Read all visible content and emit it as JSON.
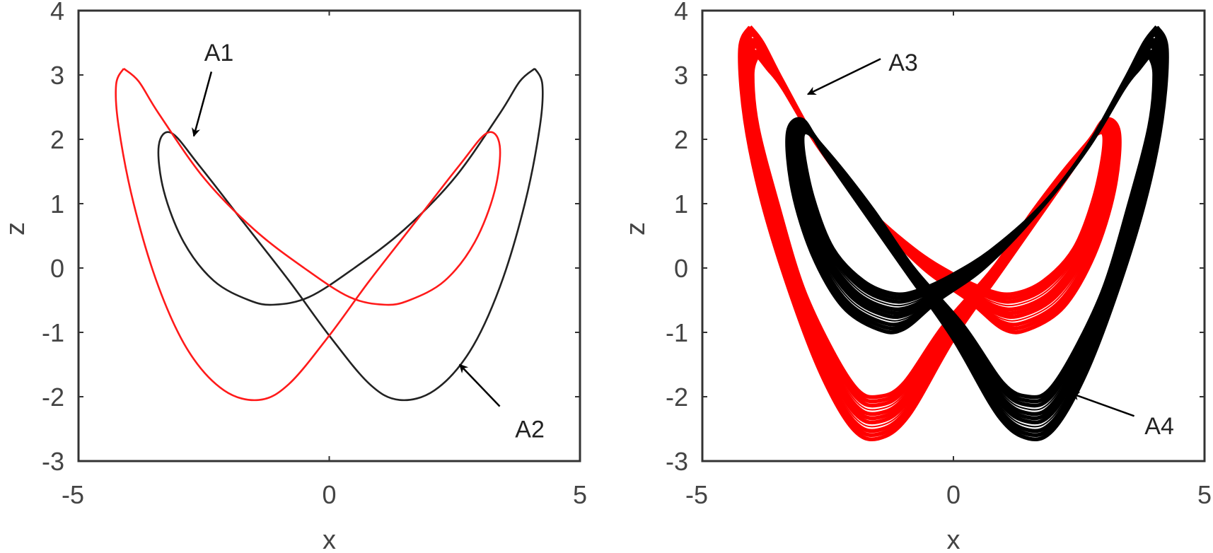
{
  "chart_data": [
    {
      "type": "line",
      "panel": "left",
      "xlabel": "x",
      "ylabel": "z",
      "xlim": [
        -5,
        5
      ],
      "ylim": [
        -3,
        4
      ],
      "xticks": [
        "-5",
        "0",
        "5"
      ],
      "yticks": [
        "4",
        "3",
        "2",
        "1",
        "0",
        "-1",
        "-2",
        "-3"
      ],
      "grid": false,
      "series": [
        {
          "name": "black orbit",
          "color": "#222222",
          "points": [
            [
              4.1,
              3.1
            ],
            [
              4.25,
              2.85
            ],
            [
              4.2,
              2.2
            ],
            [
              3.9,
              1.0
            ],
            [
              3.4,
              -0.3
            ],
            [
              2.8,
              -1.3
            ],
            [
              2.1,
              -1.9
            ],
            [
              1.4,
              -2.05
            ],
            [
              0.8,
              -1.8
            ],
            [
              0,
              -1.05
            ],
            [
              -0.8,
              -0.2
            ],
            [
              -1.7,
              0.7
            ],
            [
              -2.6,
              1.6
            ],
            [
              -3.15,
              2.1
            ],
            [
              -3.4,
              1.9
            ],
            [
              -3.3,
              1.2
            ],
            [
              -2.9,
              0.4
            ],
            [
              -2.3,
              -0.2
            ],
            [
              -1.6,
              -0.5
            ],
            [
              -1.1,
              -0.57
            ],
            [
              -0.4,
              -0.45
            ],
            [
              0.5,
              0.0
            ],
            [
              1.5,
              0.6
            ],
            [
              2.5,
              1.4
            ],
            [
              3.4,
              2.4
            ],
            [
              3.8,
              2.9
            ],
            [
              4.1,
              3.1
            ]
          ]
        },
        {
          "name": "red orbit",
          "color": "#ff1a1a",
          "points": [
            [
              -4.1,
              3.1
            ],
            [
              -4.25,
              2.85
            ],
            [
              -4.2,
              2.2
            ],
            [
              -3.9,
              1.0
            ],
            [
              -3.4,
              -0.3
            ],
            [
              -2.8,
              -1.3
            ],
            [
              -2.1,
              -1.9
            ],
            [
              -1.4,
              -2.05
            ],
            [
              -0.8,
              -1.8
            ],
            [
              0,
              -1.05
            ],
            [
              0.8,
              -0.2
            ],
            [
              1.7,
              0.7
            ],
            [
              2.6,
              1.6
            ],
            [
              3.15,
              2.1
            ],
            [
              3.4,
              1.9
            ],
            [
              3.3,
              1.2
            ],
            [
              2.9,
              0.4
            ],
            [
              2.3,
              -0.2
            ],
            [
              1.6,
              -0.5
            ],
            [
              1.1,
              -0.57
            ],
            [
              0.4,
              -0.45
            ],
            [
              -0.5,
              0.0
            ],
            [
              -1.5,
              0.6
            ],
            [
              -2.5,
              1.4
            ],
            [
              -3.4,
              2.4
            ],
            [
              -3.8,
              2.9
            ],
            [
              -4.1,
              3.1
            ]
          ]
        }
      ],
      "annotations": [
        {
          "text": "A1",
          "text_at": [
            -2.2,
            3.35
          ],
          "arrow_from": [
            -2.35,
            3.05
          ],
          "arrow_to": [
            -2.7,
            2.05
          ]
        },
        {
          "text": "A2",
          "text_at": [
            4.0,
            -2.5
          ],
          "arrow_from": [
            3.4,
            -2.15
          ],
          "arrow_to": [
            2.6,
            -1.5
          ]
        }
      ]
    },
    {
      "type": "line",
      "panel": "right",
      "xlabel": "x",
      "ylabel": "z",
      "xlim": [
        -5,
        5
      ],
      "ylim": [
        -3,
        4
      ],
      "xticks": [
        "-5",
        "0",
        "5"
      ],
      "yticks": [
        "4",
        "3",
        "2",
        "1",
        "0",
        "-1",
        "-2",
        "-3"
      ],
      "grid": false,
      "series": [
        {
          "name": "red attractor",
          "color": "#ff0000",
          "outer": [
            [
              -4.05,
              3.75
            ],
            [
              -4.25,
              3.4
            ],
            [
              -4.15,
              2.3
            ],
            [
              -3.8,
              1.0
            ],
            [
              -3.2,
              -0.5
            ],
            [
              -2.6,
              -1.7
            ],
            [
              -2.0,
              -2.5
            ],
            [
              -1.5,
              -2.65
            ],
            [
              -0.9,
              -2.3
            ],
            [
              0,
              -1.1
            ],
            [
              0.9,
              -0.1
            ],
            [
              1.8,
              0.9
            ],
            [
              2.6,
              1.8
            ],
            [
              3.0,
              2.3
            ],
            [
              3.3,
              2.1
            ],
            [
              3.2,
              1.2
            ],
            [
              2.8,
              0.2
            ],
            [
              2.2,
              -0.6
            ],
            [
              1.5,
              -0.95
            ],
            [
              1.0,
              -0.95
            ],
            [
              0.3,
              -0.5
            ],
            [
              -0.6,
              0.0
            ],
            [
              -1.6,
              0.8
            ],
            [
              -2.6,
              1.8
            ],
            [
              -3.4,
              2.9
            ],
            [
              -3.8,
              3.5
            ],
            [
              -4.05,
              3.75
            ]
          ],
          "inner": [
            [
              -3.9,
              3.3
            ],
            [
              -4.0,
              3.0
            ],
            [
              -3.9,
              2.2
            ],
            [
              -3.5,
              1.0
            ],
            [
              -3.0,
              -0.3
            ],
            [
              -2.4,
              -1.3
            ],
            [
              -1.9,
              -1.9
            ],
            [
              -1.5,
              -2.0
            ],
            [
              -1.0,
              -1.8
            ],
            [
              -0.2,
              -0.9
            ],
            [
              0.8,
              0.0
            ],
            [
              1.6,
              0.9
            ],
            [
              2.4,
              1.7
            ],
            [
              2.9,
              2.1
            ],
            [
              3.0,
              1.9
            ],
            [
              2.8,
              1.1
            ],
            [
              2.4,
              0.3
            ],
            [
              1.8,
              -0.2
            ],
            [
              1.2,
              -0.4
            ],
            [
              0.7,
              -0.35
            ],
            [
              0,
              -0.1
            ],
            [
              -0.8,
              0.3
            ],
            [
              -1.8,
              1.0
            ],
            [
              -2.7,
              1.9
            ],
            [
              -3.4,
              2.8
            ],
            [
              -3.7,
              3.1
            ],
            [
              -3.9,
              3.3
            ]
          ]
        },
        {
          "name": "black attractor",
          "color": "#000000",
          "outer": [
            [
              4.05,
              3.75
            ],
            [
              4.25,
              3.4
            ],
            [
              4.15,
              2.3
            ],
            [
              3.8,
              1.0
            ],
            [
              3.2,
              -0.5
            ],
            [
              2.6,
              -1.7
            ],
            [
              2.0,
              -2.5
            ],
            [
              1.5,
              -2.65
            ],
            [
              0.9,
              -2.3
            ],
            [
              0,
              -1.1
            ],
            [
              -0.9,
              -0.1
            ],
            [
              -1.8,
              0.9
            ],
            [
              -2.6,
              1.8
            ],
            [
              -3.0,
              2.3
            ],
            [
              -3.3,
              2.1
            ],
            [
              -3.2,
              1.2
            ],
            [
              -2.8,
              0.2
            ],
            [
              -2.2,
              -0.6
            ],
            [
              -1.5,
              -0.95
            ],
            [
              -1.0,
              -0.95
            ],
            [
              -0.3,
              -0.5
            ],
            [
              0.6,
              0.0
            ],
            [
              1.6,
              0.8
            ],
            [
              2.6,
              1.8
            ],
            [
              3.4,
              2.9
            ],
            [
              3.8,
              3.5
            ],
            [
              4.05,
              3.75
            ]
          ],
          "inner": [
            [
              3.9,
              3.3
            ],
            [
              4.0,
              3.0
            ],
            [
              3.9,
              2.2
            ],
            [
              3.5,
              1.0
            ],
            [
              3.0,
              -0.3
            ],
            [
              2.4,
              -1.3
            ],
            [
              1.9,
              -1.9
            ],
            [
              1.5,
              -2.0
            ],
            [
              1.0,
              -1.8
            ],
            [
              0.2,
              -0.9
            ],
            [
              -0.8,
              0.0
            ],
            [
              -1.6,
              0.9
            ],
            [
              -2.4,
              1.7
            ],
            [
              -2.9,
              2.1
            ],
            [
              -3.0,
              1.9
            ],
            [
              -2.8,
              1.1
            ],
            [
              -2.4,
              0.3
            ],
            [
              -1.8,
              -0.2
            ],
            [
              -1.2,
              -0.4
            ],
            [
              -0.7,
              -0.35
            ],
            [
              0,
              -0.1
            ],
            [
              0.8,
              0.3
            ],
            [
              1.8,
              1.0
            ],
            [
              2.7,
              1.9
            ],
            [
              3.4,
              2.8
            ],
            [
              3.7,
              3.1
            ],
            [
              3.9,
              3.3
            ]
          ]
        }
      ],
      "annotations": [
        {
          "text": "A3",
          "text_at": [
            -1.0,
            3.2
          ],
          "arrow_from": [
            -1.45,
            3.25
          ],
          "arrow_to": [
            -2.9,
            2.7
          ]
        },
        {
          "text": "A4",
          "text_at": [
            4.1,
            -2.45
          ],
          "arrow_from": [
            3.6,
            -2.3
          ],
          "arrow_to": [
            2.35,
            -1.95
          ]
        }
      ]
    }
  ]
}
